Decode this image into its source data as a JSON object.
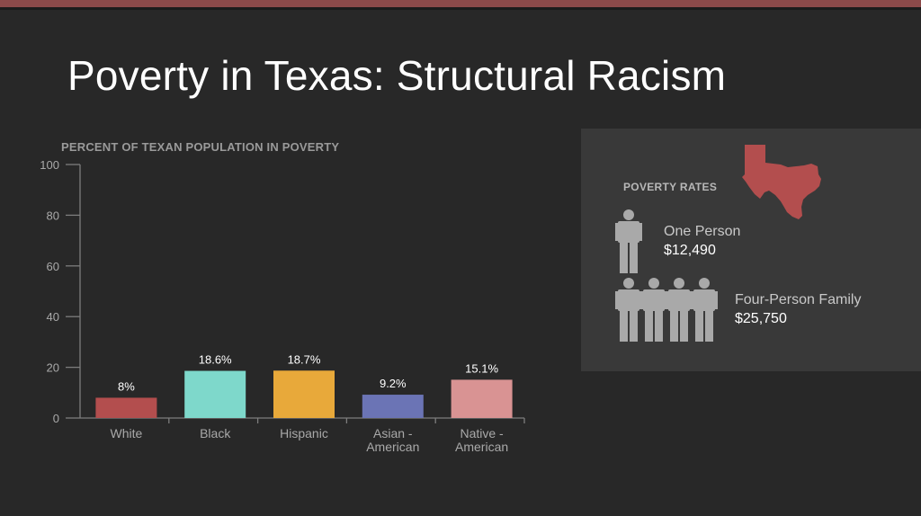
{
  "slide": {
    "title": "Poverty in Texas: Structural Racism"
  },
  "chart_data": {
    "type": "bar",
    "title": "PERCENT OF TEXAN POPULATION IN POVERTY",
    "xlabel": "",
    "ylabel": "",
    "ylim": [
      0,
      100
    ],
    "yticks": [
      "0",
      "20",
      "40",
      "60",
      "80",
      "100"
    ],
    "grid": false,
    "categories": [
      [
        "White"
      ],
      [
        "Black"
      ],
      [
        "Hispanic"
      ],
      [
        "Asian -",
        "American"
      ],
      [
        "Native -",
        "American"
      ]
    ],
    "values": [
      8,
      18.6,
      18.7,
      9.2,
      15.1
    ],
    "labels": [
      "8%",
      "18.6%",
      "18.7%",
      "9.2%",
      "15.1%"
    ],
    "colors": [
      "#b34e4e",
      "#7ed8cb",
      "#e8a93a",
      "#6b74b5",
      "#d99393"
    ]
  },
  "panel": {
    "heading": "POVERTY RATES",
    "map_color": "#b34e4e",
    "icon_color": "#a9a9a9",
    "one_person": {
      "label": "One Person",
      "amount": "$12,490"
    },
    "family": {
      "label": "Four-Person Family",
      "amount": "$25,750"
    }
  }
}
